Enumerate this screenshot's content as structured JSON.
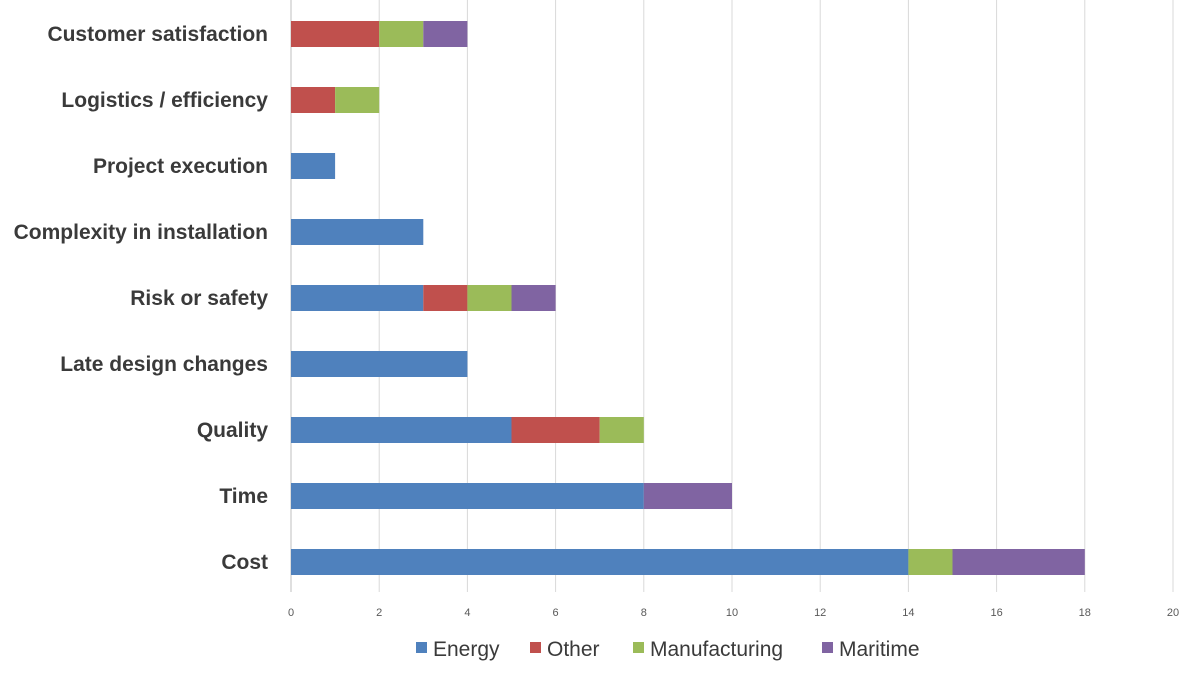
{
  "chart_data": {
    "type": "bar",
    "orientation": "horizontal",
    "stacked": true,
    "title": "",
    "xlabel": "",
    "ylabel": "",
    "categories": [
      "Customer satisfaction",
      "Logistics / efficiency",
      "Project execution",
      "Complexity in installation",
      "Risk or safety",
      "Late design changes",
      "Quality",
      "Time",
      "Cost"
    ],
    "series": [
      {
        "name": "Energy",
        "color": "#4f81bd",
        "values": [
          0,
          0,
          1,
          3,
          3,
          4,
          5,
          8,
          14
        ]
      },
      {
        "name": "Other",
        "color": "#c0504d",
        "values": [
          2,
          1,
          0,
          0,
          1,
          0,
          2,
          0,
          0
        ]
      },
      {
        "name": "Manufacturing",
        "color": "#9bbb59",
        "values": [
          1,
          1,
          0,
          0,
          1,
          0,
          1,
          0,
          1
        ]
      },
      {
        "name": "Maritime",
        "color": "#8064a2",
        "values": [
          1,
          0,
          0,
          0,
          1,
          0,
          0,
          2,
          3
        ]
      }
    ],
    "xlim": [
      0,
      20
    ],
    "xticks": [
      "0",
      "2",
      "4",
      "6",
      "8",
      "10",
      "12",
      "14",
      "16",
      "18",
      "20"
    ],
    "grid": true,
    "legend_position": "bottom"
  }
}
